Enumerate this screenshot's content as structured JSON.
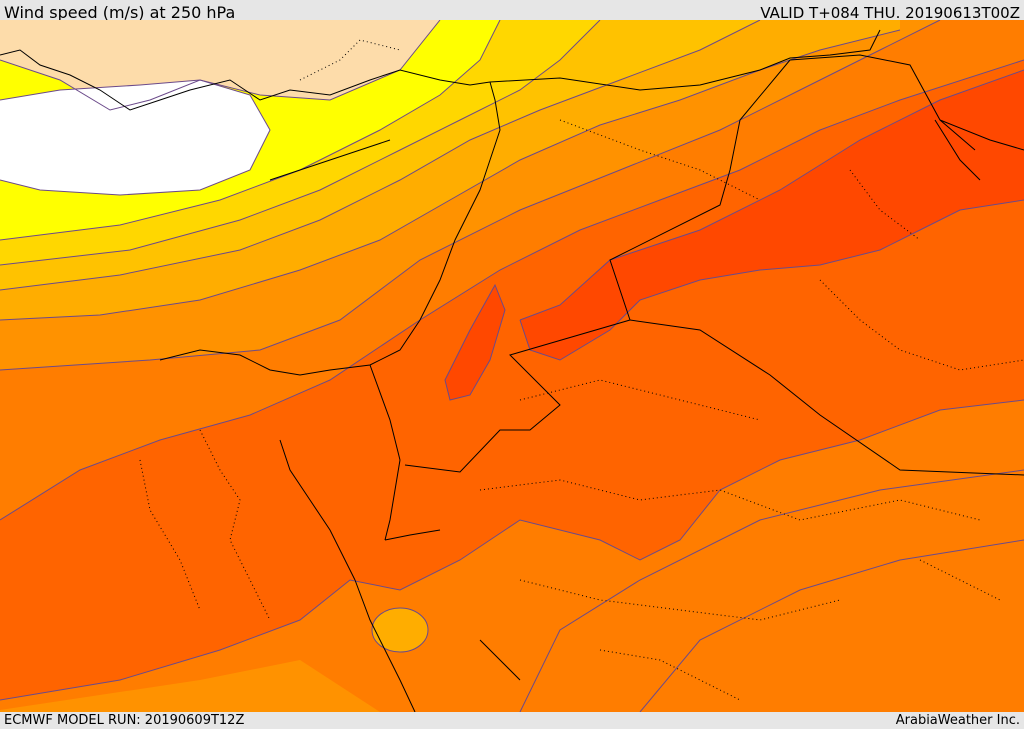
{
  "header": {
    "title": "Wind speed (m/s) at 250 hPa",
    "valid_time": "VALID T+084 THU. 20190613T00Z"
  },
  "footer": {
    "model_run": "ECMWF MODEL RUN: 20190609T12Z",
    "credit": "ArabiaWeather Inc."
  },
  "map": {
    "field": "wind speed",
    "level": "250 hPa",
    "colors": {
      "calm": "#ffffff",
      "light": "#fddcaa",
      "yellow": "#ffff00",
      "gold": "#ffd700",
      "amber": "#ffc200",
      "orange_light": "#ffad00",
      "orange": "#ff9200",
      "orange_dark": "#ff7d00",
      "red_orange": "#ff6400",
      "jet_core": "#ff4800",
      "contour_line": "#6b4a8a",
      "border_line": "#000000"
    }
  }
}
